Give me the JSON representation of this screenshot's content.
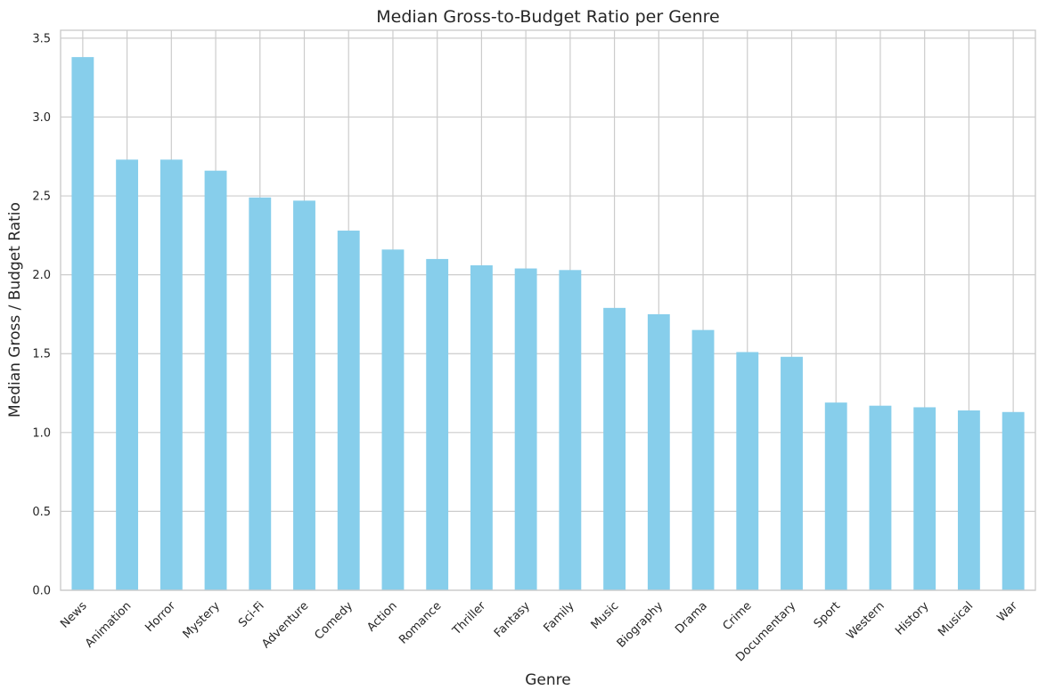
{
  "chart_data": {
    "type": "bar",
    "title": "Median Gross-to-Budget Ratio per Genre",
    "xlabel": "Genre",
    "ylabel": "Median Gross / Budget Ratio",
    "categories": [
      "News",
      "Animation",
      "Horror",
      "Mystery",
      "Sci-Fi",
      "Adventure",
      "Comedy",
      "Action",
      "Romance",
      "Thriller",
      "Fantasy",
      "Family",
      "Music",
      "Biography",
      "Drama",
      "Crime",
      "Documentary",
      "Sport",
      "Western",
      "History",
      "Musical",
      "War"
    ],
    "values": [
      3.38,
      2.73,
      2.73,
      2.66,
      2.49,
      2.47,
      2.28,
      2.16,
      2.1,
      2.06,
      2.04,
      2.03,
      1.79,
      1.75,
      1.65,
      1.51,
      1.48,
      1.19,
      1.17,
      1.16,
      1.14,
      1.13
    ],
    "ylim": [
      0,
      3.55
    ],
    "yticks": [
      "0.0",
      "0.5",
      "1.0",
      "1.5",
      "2.0",
      "2.5",
      "3.0",
      "3.5"
    ],
    "bar_color": "#87ceeb",
    "grid": true,
    "grid_color": "#cccccc",
    "text_color": "#262626"
  }
}
